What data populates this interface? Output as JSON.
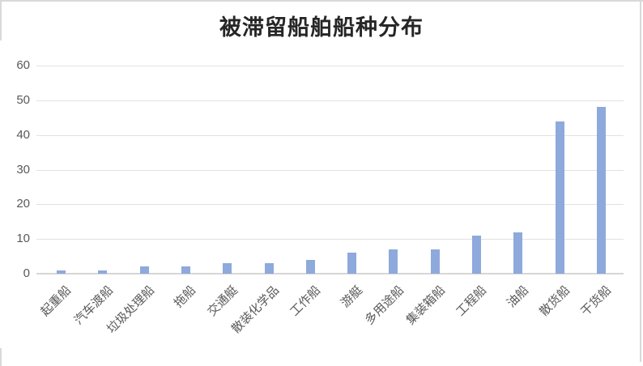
{
  "title": "被滞留船舶船种分布",
  "colors": {
    "background": "#FFFFFF",
    "bar": "#8EA9DB",
    "gridline": "#E2E2E2",
    "axis_line": "#D6D6D6",
    "tick_label": "#595959",
    "title_text": "#262626",
    "frame_border": "#D9D9D9"
  },
  "chart_data": {
    "type": "bar",
    "title": "被滞留船舶船种分布",
    "categories": [
      "起重船",
      "汽车渡船",
      "垃圾处理船",
      "拖船",
      "交通艇",
      "散装化学品",
      "工作船",
      "游艇",
      "多用途船",
      "集装箱船",
      "工程船",
      "油船",
      "散货船",
      "干货船"
    ],
    "values": [
      1,
      1,
      2,
      2,
      3,
      3,
      4,
      6,
      7,
      7,
      11,
      12,
      44,
      48
    ],
    "xlabel": "",
    "ylabel": "",
    "ylim": [
      0,
      60
    ],
    "yticks": [
      0,
      10,
      20,
      30,
      40,
      50,
      60
    ],
    "grid": "horizontal",
    "legend": "none",
    "x_tick_label_rotation_deg": 45,
    "bar_color": "#8EA9DB"
  }
}
